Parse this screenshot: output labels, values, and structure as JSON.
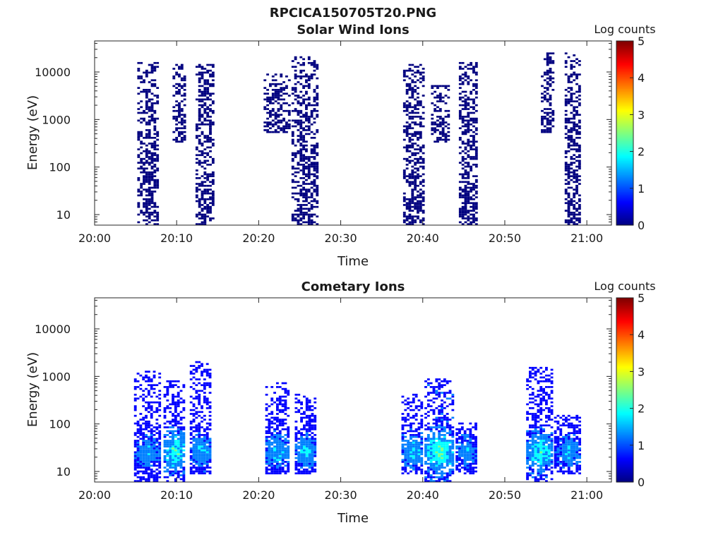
{
  "figure": {
    "title": "RPCICA150705T20.PNG"
  },
  "colormap": [
    "#00007f",
    "#0000ff",
    "#007fff",
    "#00ffff",
    "#7fff7f",
    "#ffff00",
    "#ff7f00",
    "#ff0000",
    "#7f0000"
  ],
  "chart_data": [
    {
      "type": "heatmap",
      "title": "Solar Wind Ions",
      "xlabel": "Time",
      "ylabel": "Energy (eV)",
      "x_ticks": [
        "20:00",
        "20:10",
        "20:20",
        "20:30",
        "20:40",
        "20:50",
        "21:00"
      ],
      "x_tick_minutes": [
        0,
        10,
        20,
        30,
        40,
        50,
        60
      ],
      "xlim_minutes": [
        0,
        63
      ],
      "y_scale": "log",
      "y_ticks": [
        "10",
        "100",
        "1000",
        "10000"
      ],
      "y_tick_values": [
        10,
        100,
        1000,
        10000
      ],
      "ylim": [
        6,
        45000
      ],
      "colorbar": {
        "label": "Log counts",
        "ticks": [
          "0",
          "1",
          "2",
          "3",
          "4",
          "5"
        ],
        "range": [
          0,
          5
        ]
      },
      "bursts": [
        {
          "t_start": 5.2,
          "t_end": 7.8,
          "e_min": 6,
          "e_max": 16000,
          "peak_log_counts": 0.3
        },
        {
          "t_start": 9.5,
          "t_end": 11.0,
          "e_min": 300,
          "e_max": 14000,
          "peak_log_counts": 0.2
        },
        {
          "t_start": 12.3,
          "t_end": 14.4,
          "e_min": 6,
          "e_max": 14000,
          "peak_log_counts": 0.3
        },
        {
          "t_start": 20.6,
          "t_end": 23.6,
          "e_min": 500,
          "e_max": 9000,
          "peak_log_counts": 0.2
        },
        {
          "t_start": 24.0,
          "t_end": 27.0,
          "e_min": 6,
          "e_max": 20000,
          "peak_log_counts": 0.3
        },
        {
          "t_start": 37.6,
          "t_end": 40.2,
          "e_min": 6,
          "e_max": 14000,
          "peak_log_counts": 0.3
        },
        {
          "t_start": 41.0,
          "t_end": 43.0,
          "e_min": 300,
          "e_max": 5000,
          "peak_log_counts": 0.2
        },
        {
          "t_start": 44.4,
          "t_end": 46.6,
          "e_min": 6,
          "e_max": 16000,
          "peak_log_counts": 0.3
        },
        {
          "t_start": 54.4,
          "t_end": 56.0,
          "e_min": 500,
          "e_max": 24000,
          "peak_log_counts": 0.2
        },
        {
          "t_start": 57.3,
          "t_end": 59.2,
          "e_min": 6,
          "e_max": 24000,
          "peak_log_counts": 0.3
        }
      ]
    },
    {
      "type": "heatmap",
      "title": "Cometary Ions",
      "xlabel": "Time",
      "ylabel": "Energy (eV)",
      "x_ticks": [
        "20:00",
        "20:10",
        "20:20",
        "20:30",
        "20:40",
        "20:50",
        "21:00"
      ],
      "x_tick_minutes": [
        0,
        10,
        20,
        30,
        40,
        50,
        60
      ],
      "xlim_minutes": [
        0,
        63
      ],
      "y_scale": "log",
      "y_ticks": [
        "10",
        "100",
        "1000",
        "10000"
      ],
      "y_tick_values": [
        10,
        100,
        1000,
        10000
      ],
      "ylim": [
        6,
        45000
      ],
      "colorbar": {
        "label": "Log counts",
        "ticks": [
          "0",
          "1",
          "2",
          "3",
          "4",
          "5"
        ],
        "range": [
          0,
          5
        ]
      },
      "bursts": [
        {
          "t_start": 4.8,
          "t_end": 7.8,
          "e_min": 6,
          "e_max": 1200,
          "peak_log_counts": 1.8
        },
        {
          "t_start": 8.4,
          "t_end": 11.0,
          "e_min": 6,
          "e_max": 800,
          "peak_log_counts": 2.6
        },
        {
          "t_start": 11.6,
          "t_end": 14.2,
          "e_min": 8,
          "e_max": 2000,
          "peak_log_counts": 2.0
        },
        {
          "t_start": 20.8,
          "t_end": 23.6,
          "e_min": 8,
          "e_max": 750,
          "peak_log_counts": 2.1
        },
        {
          "t_start": 24.4,
          "t_end": 27.0,
          "e_min": 8,
          "e_max": 400,
          "peak_log_counts": 2.0
        },
        {
          "t_start": 37.4,
          "t_end": 40.0,
          "e_min": 8,
          "e_max": 400,
          "peak_log_counts": 2.2
        },
        {
          "t_start": 40.2,
          "t_end": 43.8,
          "e_min": 6,
          "e_max": 900,
          "peak_log_counts": 2.8
        },
        {
          "t_start": 44.0,
          "t_end": 46.4,
          "e_min": 8,
          "e_max": 100,
          "peak_log_counts": 1.8
        },
        {
          "t_start": 52.6,
          "t_end": 55.6,
          "e_min": 6,
          "e_max": 1500,
          "peak_log_counts": 2.5
        },
        {
          "t_start": 56.0,
          "t_end": 59.2,
          "e_min": 8,
          "e_max": 150,
          "peak_log_counts": 1.8
        }
      ]
    }
  ]
}
